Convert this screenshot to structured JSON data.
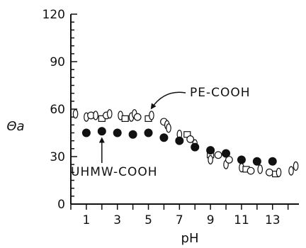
{
  "chart_data": {
    "type": "scatter",
    "title": "",
    "xlabel": "pH",
    "ylabel": "Θa",
    "xlim": [
      0,
      14.7
    ],
    "ylim": [
      0,
      120
    ],
    "x_tick_labels": [
      "1",
      "3",
      "5",
      "7",
      "9",
      "11",
      "13"
    ],
    "x_tick_values": [
      1,
      3,
      5,
      7,
      9,
      11,
      13
    ],
    "y_tick_labels": [
      "0",
      "30",
      "60",
      "90",
      "120"
    ],
    "y_tick_values": [
      0,
      30,
      60,
      90,
      120
    ],
    "grid": false,
    "series": [
      {
        "name": "PE-COOH",
        "marker": "open",
        "points": [
          {
            "x": 0.3,
            "y": 57,
            "m": "diamond"
          },
          {
            "x": 1.0,
            "y": 55,
            "m": "diamond"
          },
          {
            "x": 1.3,
            "y": 56,
            "m": "circle"
          },
          {
            "x": 1.6,
            "y": 56,
            "m": "diamond"
          },
          {
            "x": 2.0,
            "y": 54,
            "m": "square"
          },
          {
            "x": 2.3,
            "y": 56,
            "m": "circle"
          },
          {
            "x": 2.5,
            "y": 57,
            "m": "diamond"
          },
          {
            "x": 3.2,
            "y": 56,
            "m": "diamond"
          },
          {
            "x": 3.5,
            "y": 54,
            "m": "square"
          },
          {
            "x": 3.9,
            "y": 55,
            "m": "diamond"
          },
          {
            "x": 4.1,
            "y": 57,
            "m": "diamond"
          },
          {
            "x": 4.3,
            "y": 55,
            "m": "circle"
          },
          {
            "x": 5.0,
            "y": 54,
            "m": "square"
          },
          {
            "x": 5.2,
            "y": 56,
            "m": "diamond"
          },
          {
            "x": 6.0,
            "y": 52,
            "m": "circle"
          },
          {
            "x": 6.2,
            "y": 50,
            "m": "diamond"
          },
          {
            "x": 6.3,
            "y": 48,
            "m": "diamond"
          },
          {
            "x": 7.0,
            "y": 44,
            "m": "diamond"
          },
          {
            "x": 7.5,
            "y": 44,
            "m": "square"
          },
          {
            "x": 7.7,
            "y": 41,
            "m": "circle"
          },
          {
            "x": 8.0,
            "y": 38,
            "m": "diamond"
          },
          {
            "x": 9.0,
            "y": 31,
            "m": "square"
          },
          {
            "x": 9.0,
            "y": 28,
            "m": "diamond"
          },
          {
            "x": 9.5,
            "y": 31,
            "m": "circle"
          },
          {
            "x": 10.0,
            "y": 25,
            "m": "diamond"
          },
          {
            "x": 10.2,
            "y": 28,
            "m": "circle"
          },
          {
            "x": 11.0,
            "y": 23,
            "m": "diamond"
          },
          {
            "x": 11.3,
            "y": 22,
            "m": "square"
          },
          {
            "x": 11.6,
            "y": 21,
            "m": "circle"
          },
          {
            "x": 12.2,
            "y": 22,
            "m": "diamond"
          },
          {
            "x": 12.8,
            "y": 20,
            "m": "circle"
          },
          {
            "x": 13.2,
            "y": 19,
            "m": "square"
          },
          {
            "x": 13.4,
            "y": 20,
            "m": "diamond"
          },
          {
            "x": 14.2,
            "y": 21,
            "m": "diamond"
          },
          {
            "x": 14.5,
            "y": 24,
            "m": "diamond"
          }
        ]
      },
      {
        "name": "UHMW-COOH",
        "marker": "filled-circle",
        "points": [
          {
            "x": 1,
            "y": 45
          },
          {
            "x": 2,
            "y": 46
          },
          {
            "x": 3,
            "y": 45
          },
          {
            "x": 4,
            "y": 44
          },
          {
            "x": 5,
            "y": 45
          },
          {
            "x": 6,
            "y": 42
          },
          {
            "x": 7,
            "y": 40
          },
          {
            "x": 8,
            "y": 36
          },
          {
            "x": 9,
            "y": 34
          },
          {
            "x": 10,
            "y": 32
          },
          {
            "x": 11,
            "y": 28
          },
          {
            "x": 12,
            "y": 27
          },
          {
            "x": 13,
            "y": 27
          }
        ]
      }
    ],
    "annotations": [
      {
        "text": "PE-COOH",
        "arrow_to": {
          "x": 5.2,
          "y": 57
        }
      },
      {
        "text": "UHMW-COOH",
        "arrow_to": {
          "x": 2.0,
          "y": 45
        }
      }
    ]
  }
}
